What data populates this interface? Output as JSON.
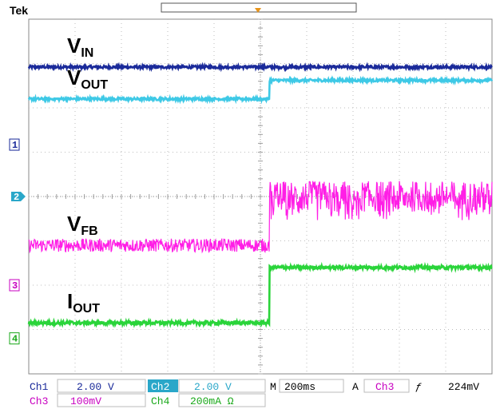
{
  "brand": "Tek",
  "chart_data": {
    "type": "line",
    "title": "",
    "xlabel": "",
    "ylabel": "",
    "grid": true,
    "divisions": {
      "x": 10,
      "y": 8
    },
    "x_unit": "div",
    "xlim": [
      0,
      10
    ],
    "ylim": [
      -4,
      4
    ],
    "step_at_div": 5.2,
    "series": [
      {
        "name": "IN",
        "label_main": "V",
        "label_sub": "IN",
        "color": "#1a2a9a",
        "x": [
          0,
          10
        ],
        "y": [
          2.92,
          2.92
        ],
        "noise_div": 0.03
      },
      {
        "name": "OUT",
        "label_main": "V",
        "label_sub": "OUT",
        "color": "#3ec9e6",
        "x": [
          0,
          5.2,
          5.2,
          10
        ],
        "y": [
          2.2,
          2.2,
          2.62,
          2.62
        ],
        "noise_div": 0.03
      },
      {
        "name": "FB",
        "label_main": "V",
        "label_sub": "FB",
        "color": "#ff1ee6",
        "x": [
          0,
          5.2,
          5.2,
          10
        ],
        "y": [
          -1.1,
          -1.1,
          0.0,
          0.0
        ],
        "noise_div": 0.15,
        "noise_div_after": 0.35
      },
      {
        "name": "OUT",
        "label_main": "I",
        "label_sub": "OUT",
        "color": "#2ad43a",
        "x": [
          0,
          5.2,
          5.2,
          10
        ],
        "y": [
          -2.85,
          -2.85,
          -1.6,
          -1.6
        ],
        "noise_div": 0.04
      }
    ],
    "channel_markers": [
      {
        "label": "1",
        "color": "#1a2a9a",
        "level": 1.17
      },
      {
        "label": "2",
        "color": "#2aa7c9",
        "level": 0.0,
        "filled": true
      },
      {
        "label": "3",
        "color": "#c800c0",
        "level": -2.0
      },
      {
        "label": "4",
        "color": "#1aa81a",
        "level": -3.2
      }
    ]
  },
  "status_bar": {
    "ch1_label": "Ch1",
    "ch1_value": "2.00 V",
    "ch2_label": "Ch2",
    "ch2_value": "2.00 V",
    "ch3_label": "Ch3",
    "ch3_value": "100mV",
    "ch4_label": "Ch4",
    "ch4_value": "200mA Ω",
    "timebase_label": "M",
    "timebase_value": "200ms",
    "trigger_label": "A",
    "trigger_source": "Ch3",
    "trigger_slope": "ƒ",
    "trigger_level": "224mV"
  }
}
